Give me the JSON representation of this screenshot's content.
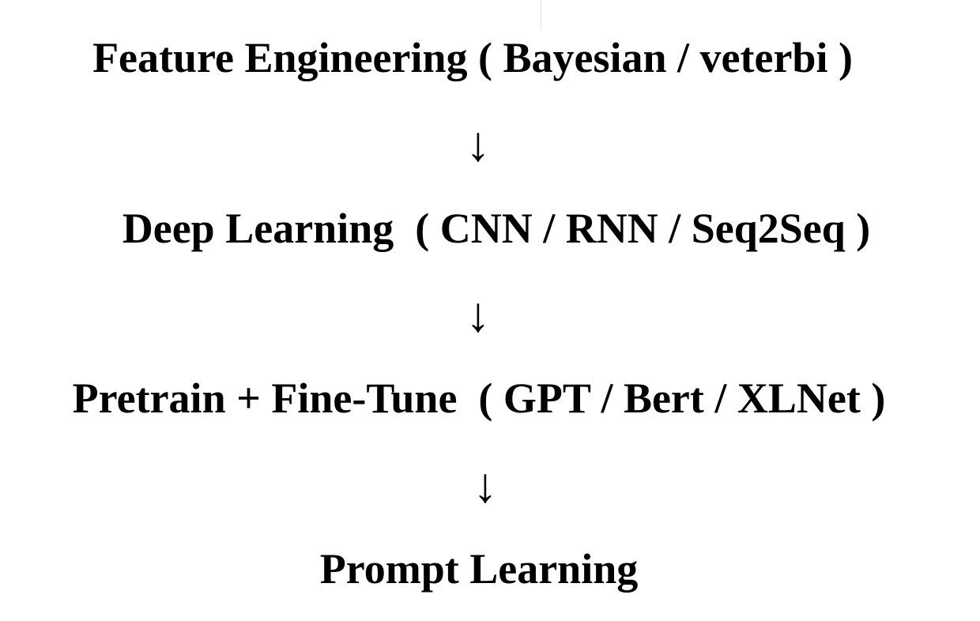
{
  "stages": [
    {
      "label": "Feature Engineering ( Bayesian / veterbi )"
    },
    {
      "label": "Deep Learning  ( CNN / RNN / Seq2Seq )"
    },
    {
      "label": "Pretrain + Fine-Tune  ( GPT / Bert / XLNet )"
    },
    {
      "label": "Prompt Learning"
    }
  ],
  "arrows": [
    {
      "glyph": "↓"
    },
    {
      "glyph": "↓"
    },
    {
      "glyph": "↓"
    }
  ]
}
